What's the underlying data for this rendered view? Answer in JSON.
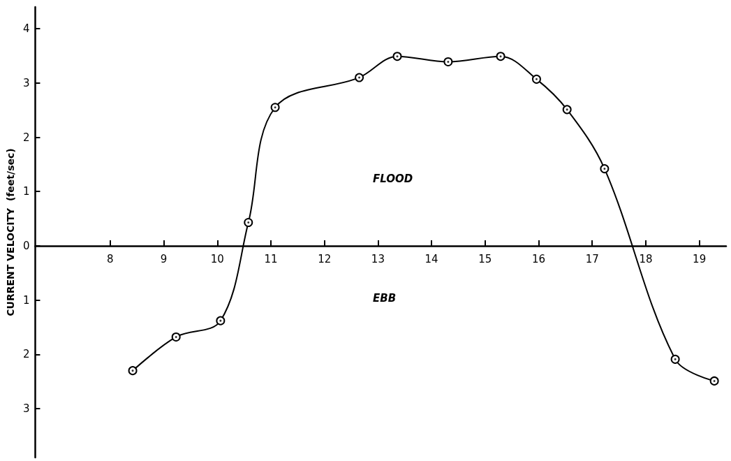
{
  "chart_data": {
    "type": "line",
    "ylabel": "CURRENT VELOCITY  (feet/sec)",
    "annotations": [
      "FLOOD",
      "EBB"
    ],
    "series": [
      {
        "color": "#000000",
        "x": [
          8.42,
          9.23,
          10.06,
          10.58,
          11.08,
          12.65,
          13.36,
          14.31,
          15.29,
          15.96,
          16.53,
          17.23,
          18.55,
          19.28
        ],
        "values": [
          -2.3,
          -1.68,
          -1.38,
          0.43,
          2.55,
          3.1,
          3.49,
          3.39,
          3.49,
          3.07,
          2.51,
          1.42,
          -2.09,
          -2.49
        ]
      }
    ],
    "xlim": [
      6.6,
      19.5
    ],
    "xticks": [
      8,
      9,
      10,
      11,
      12,
      13,
      14,
      15,
      16,
      17,
      18,
      19
    ],
    "ylim": [
      -3.9,
      4.4
    ],
    "yticks": [
      {
        "value": -3,
        "label": "3"
      },
      {
        "value": -2,
        "label": "2"
      },
      {
        "value": -1,
        "label": "1"
      },
      0,
      1,
      2,
      3,
      4
    ],
    "marker": "circle",
    "line_style": "solid"
  }
}
